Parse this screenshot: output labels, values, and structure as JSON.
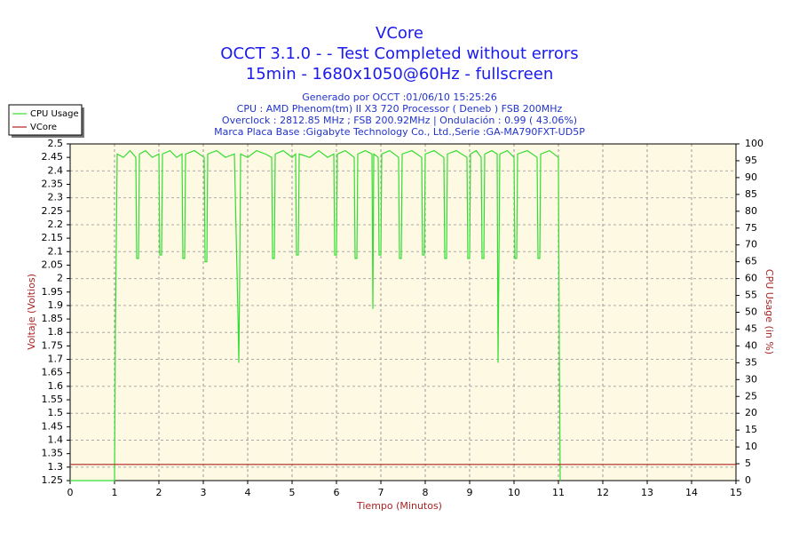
{
  "chart_data": {
    "type": "line",
    "title": "VCore",
    "subtitle_lines": [
      "OCCT 3.1.0 -  - Test Completed without errors",
      "15min - 1680x1050@60Hz - fullscreen"
    ],
    "annotations": [
      "Generado por OCCT :01/06/10 15:25:26",
      "CPU : AMD Phenom(tm) II X3 720 Processor ( Deneb ) FSB 200MHz",
      "Overclock : 2812.85 MHz ; FSB 200.92MHz | Ondulación : 0.99 ( 43.06%)",
      "Marca Placa Base :Gigabyte Technology Co., Ltd.,Serie :GA-MA790FXT-UD5P"
    ],
    "x_label": "Tiempo (Minutos)",
    "y_label": "Voltaje (Voltios)",
    "y2_label": "CPU Usage (in %)",
    "xlim": [
      0,
      15
    ],
    "xticks": [
      0,
      1,
      2,
      3,
      4,
      5,
      6,
      7,
      8,
      9,
      10,
      11,
      12,
      13,
      14,
      15
    ],
    "ylim": [
      1.25,
      2.5
    ],
    "yticks": [
      1.25,
      1.3,
      1.35,
      1.4,
      1.45,
      1.5,
      1.55,
      1.6,
      1.65,
      1.7,
      1.75,
      1.8,
      1.85,
      1.9,
      1.95,
      2,
      2.05,
      2.1,
      2.15,
      2.2,
      2.25,
      2.3,
      2.35,
      2.4,
      2.45,
      2.5
    ],
    "y2lim": [
      0,
      100
    ],
    "y2ticks": [
      0,
      5,
      10,
      15,
      20,
      25,
      30,
      35,
      40,
      45,
      50,
      55,
      60,
      65,
      70,
      75,
      80,
      85,
      90,
      95,
      100
    ],
    "grid": true,
    "legend": "top-left",
    "series": [
      {
        "name": "CPU Usage",
        "color": "#33dd33",
        "axis": "y2",
        "x": [
          0,
          1.0,
          1.02,
          1.06,
          1.2,
          1.35,
          1.48,
          1.5,
          1.54,
          1.56,
          1.7,
          1.85,
          2.0,
          2.02,
          2.06,
          2.08,
          2.25,
          2.4,
          2.52,
          2.54,
          2.58,
          2.6,
          2.8,
          3.02,
          3.04,
          3.08,
          3.1,
          3.3,
          3.5,
          3.7,
          3.78,
          3.8,
          3.82,
          3.84,
          4.0,
          4.2,
          4.4,
          4.54,
          4.56,
          4.6,
          4.62,
          4.8,
          5.0,
          5.08,
          5.1,
          5.14,
          5.16,
          5.4,
          5.6,
          5.8,
          5.94,
          5.96,
          6.0,
          6.02,
          6.2,
          6.4,
          6.42,
          6.46,
          6.48,
          6.65,
          6.8,
          6.82,
          6.84,
          6.94,
          6.96,
          7.0,
          7.02,
          7.2,
          7.4,
          7.42,
          7.46,
          7.48,
          7.7,
          7.92,
          7.94,
          7.98,
          8.0,
          8.2,
          8.42,
          8.44,
          8.48,
          8.5,
          8.7,
          8.94,
          8.96,
          9.0,
          9.02,
          9.15,
          9.26,
          9.28,
          9.32,
          9.34,
          9.5,
          9.62,
          9.64,
          9.66,
          9.68,
          9.85,
          10.0,
          10.02,
          10.06,
          10.08,
          10.3,
          10.52,
          10.54,
          10.58,
          10.6,
          10.8,
          11.0,
          11.02,
          11.04
        ],
        "values": [
          0,
          0,
          45,
          97,
          96,
          98,
          96,
          66,
          66,
          97,
          98,
          96,
          97,
          67,
          67,
          97,
          98,
          96,
          97,
          66,
          66,
          97,
          98,
          96,
          65,
          65,
          97,
          98,
          96,
          97,
          50,
          35,
          60,
          97,
          96,
          98,
          97,
          96,
          66,
          66,
          97,
          98,
          96,
          97,
          67,
          67,
          97,
          96,
          98,
          96,
          97,
          67,
          67,
          97,
          98,
          96,
          66,
          66,
          97,
          98,
          97,
          51,
          97,
          96,
          67,
          67,
          97,
          98,
          96,
          66,
          66,
          97,
          98,
          96,
          67,
          67,
          97,
          98,
          96,
          66,
          66,
          97,
          98,
          96,
          66,
          66,
          97,
          98,
          96,
          66,
          66,
          97,
          98,
          97,
          35,
          65,
          97,
          98,
          96,
          66,
          66,
          97,
          98,
          96,
          66,
          66,
          97,
          98,
          96,
          40,
          0
        ]
      },
      {
        "name": "VCore",
        "color": "#b22222",
        "x": [
          0,
          15
        ],
        "values": [
          1.31,
          1.31
        ]
      }
    ]
  }
}
